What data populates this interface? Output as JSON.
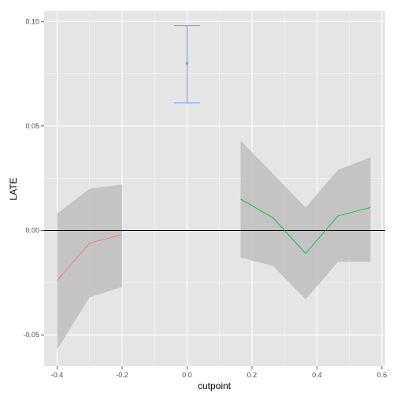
{
  "chart_data": {
    "type": "line",
    "title": "",
    "xlabel": "cutpoint",
    "ylabel": "LATE",
    "xlim": [
      -0.44,
      0.61
    ],
    "ylim": [
      -0.065,
      0.105
    ],
    "x_ticks": [
      {
        "value": -0.4,
        "label": "-0.4"
      },
      {
        "value": -0.2,
        "label": "-0.2"
      },
      {
        "value": 0.0,
        "label": "0.0"
      },
      {
        "value": 0.2,
        "label": "0.2"
      },
      {
        "value": 0.4,
        "label": "0.4"
      },
      {
        "value": 0.6,
        "label": "0.6"
      }
    ],
    "y_ticks": [
      {
        "value": -0.05,
        "label": "-0.05"
      },
      {
        "value": 0.0,
        "label": "0.00"
      },
      {
        "value": 0.05,
        "label": "0.05"
      },
      {
        "value": 0.1,
        "label": "0.10"
      }
    ],
    "grid": true,
    "reference_line": {
      "y": 0.0,
      "color": "#000000"
    },
    "series": [
      {
        "color": "#F8766D",
        "points": [
          {
            "x": -0.4,
            "y": -0.024,
            "lower": -0.057,
            "upper": 0.008
          },
          {
            "x": -0.3,
            "y": -0.006,
            "lower": -0.032,
            "upper": 0.02
          },
          {
            "x": -0.2,
            "y": -0.002,
            "lower": -0.027,
            "upper": 0.022
          }
        ]
      },
      {
        "color": "#00BA38",
        "points": [
          {
            "x": 0.165,
            "y": 0.015,
            "lower": -0.013,
            "upper": 0.043
          },
          {
            "x": 0.265,
            "y": 0.006,
            "lower": -0.017,
            "upper": 0.027
          },
          {
            "x": 0.365,
            "y": -0.011,
            "lower": -0.033,
            "upper": 0.011
          },
          {
            "x": 0.465,
            "y": 0.007,
            "lower": -0.015,
            "upper": 0.029
          },
          {
            "x": 0.565,
            "y": 0.011,
            "lower": -0.015,
            "upper": 0.035
          }
        ]
      }
    ],
    "point_estimate": {
      "color": "#619CFF",
      "x": 0.0,
      "y": 0.08,
      "lower": 0.061,
      "upper": 0.098
    },
    "colors": {
      "panel_background": "#E5E5E5",
      "grid_line": "#FFFFFF",
      "ribbon": "#BEBEBE"
    }
  }
}
